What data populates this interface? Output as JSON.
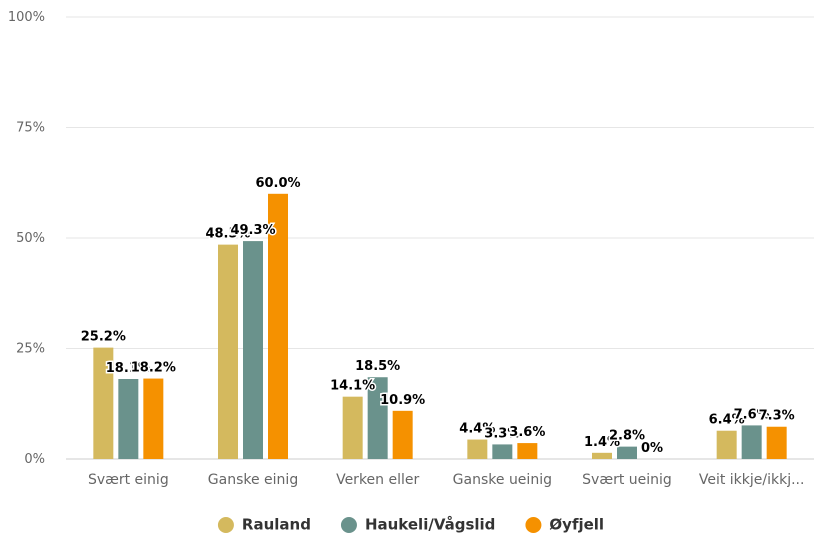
{
  "chart_data": {
    "type": "bar",
    "categories": [
      "Svært einig",
      "Ganske einig",
      "Verken eller",
      "Ganske ueinig",
      "Svært ueinig",
      "Veit ikkje/ikkj..."
    ],
    "series": [
      {
        "name": "Rauland",
        "color": "#d4b95e",
        "values": [
          25.2,
          48.5,
          14.1,
          4.4,
          1.4,
          6.4
        ],
        "labels": [
          "25.2%",
          "48.5%",
          "14.1%",
          "4.4%",
          "1.4%",
          "6.4%"
        ]
      },
      {
        "name": "Haukeli/Vågslid",
        "color": "#6a928c",
        "values": [
          18.1,
          49.3,
          18.5,
          3.3,
          2.8,
          7.6
        ],
        "labels": [
          "18.1%",
          "49.3%",
          "18.5%",
          "3.3%",
          "2.8%",
          "7.6%"
        ]
      },
      {
        "name": "Øyfjell",
        "color": "#f59100",
        "values": [
          18.2,
          60.0,
          10.9,
          3.6,
          0,
          7.3
        ],
        "labels": [
          "18.2%",
          "60.0%",
          "10.9%",
          "3.6%",
          "0%",
          "7.3%"
        ]
      }
    ],
    "yticks": [
      "0%",
      "25%",
      "50%",
      "75%",
      "100%"
    ],
    "ylim": [
      0,
      100
    ],
    "grid": true,
    "legend": "bottom-center"
  }
}
